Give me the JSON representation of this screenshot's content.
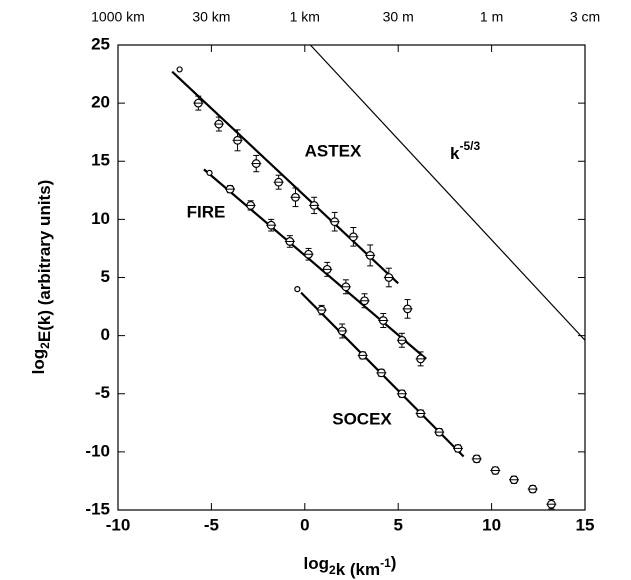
{
  "chart_data": {
    "type": "scatter",
    "xlim": [
      -10,
      15
    ],
    "ylim": [
      -15,
      25
    ],
    "xticks": [
      -10,
      -5,
      0,
      5,
      10,
      15
    ],
    "yticks": [
      -15,
      -10,
      -5,
      0,
      5,
      10,
      15,
      20,
      25
    ],
    "xticks_top": [
      {
        "value": -10,
        "label": "1000 km"
      },
      {
        "value": -5,
        "label": "30 km"
      },
      {
        "value": 0,
        "label": "1 km"
      },
      {
        "value": 5,
        "label": "30 m"
      },
      {
        "value": 10,
        "label": "1 m"
      },
      {
        "value": 15,
        "label": "3 cm"
      }
    ],
    "x_label": [
      "log",
      "2",
      "k  (km",
      "-1",
      ")"
    ],
    "y_label": [
      "log",
      "2",
      "E(k)  (arbitrary  units)"
    ],
    "color": "#000000",
    "open_first": true,
    "series": [
      {
        "name": "ASTEX",
        "x": [
          -6.7,
          -5.7,
          -4.6,
          -3.6,
          -2.6,
          -1.4,
          -0.5,
          0.5,
          1.6,
          2.6,
          3.5,
          4.5,
          5.5
        ],
        "values": [
          22.9,
          20,
          18.2,
          16.8,
          14.8,
          13.2,
          11.9,
          11.2,
          9.8,
          8.5,
          6.9,
          5,
          2.3
        ],
        "errors": [
          0,
          0.6,
          0.6,
          0.9,
          0.7,
          0.6,
          0.8,
          0.7,
          0.8,
          0.8,
          0.9,
          0.8,
          0.8
        ],
        "fit": {
          "x": [
            -7.1,
            5
          ],
          "values": [
            22.7,
            4.5
          ]
        }
      },
      {
        "name": "FIRE",
        "x": [
          -5.1,
          -4,
          -2.9,
          -1.8,
          -0.8,
          0.2,
          1.2,
          2.2,
          3.2,
          4.2,
          5.2,
          6.2
        ],
        "values": [
          14,
          12.6,
          11.2,
          9.5,
          8.1,
          7,
          5.7,
          4.2,
          3,
          1.3,
          -0.4,
          -2
        ],
        "errors": [
          0,
          0.3,
          0.4,
          0.5,
          0.5,
          0.5,
          0.6,
          0.6,
          0.6,
          0.6,
          0.6,
          0.6
        ],
        "fit": {
          "x": [
            -5.4,
            6.5
          ],
          "values": [
            14.3,
            -2
          ]
        }
      },
      {
        "name": "SOCEX",
        "x": [
          -0.4,
          0.9,
          2,
          3.1,
          4.1,
          5.2,
          6.2,
          7.2,
          8.2,
          9.2,
          10.2,
          11.2,
          12.2,
          13.2
        ],
        "values": [
          4,
          2.2,
          0.4,
          -1.7,
          -3.2,
          -5,
          -6.7,
          -8.3,
          -9.7,
          -10.6,
          -11.6,
          -12.4,
          -13.2,
          -14.5
        ],
        "errors": [
          0,
          0.4,
          0.6,
          0.3,
          0.3,
          0.3,
          0.3,
          0.3,
          0.3,
          0.3,
          0.3,
          0.3,
          0.3,
          0.4
        ],
        "fit": {
          "x": [
            -0.2,
            8.5
          ],
          "values": [
            3.7,
            -10.4
          ]
        }
      }
    ],
    "reference_line": {
      "label": [
        "k",
        "-5/3"
      ],
      "x": [
        0.3,
        15
      ],
      "values": [
        25,
        -0.4
      ]
    }
  }
}
